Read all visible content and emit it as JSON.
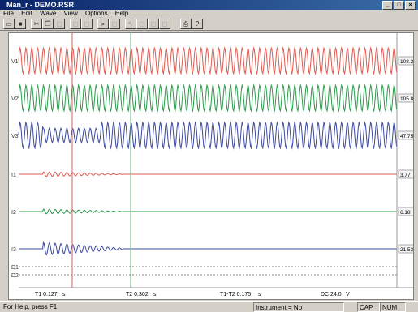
{
  "window": {
    "title": "Man_r - DEMO.RSR",
    "min": "_",
    "max": "□",
    "close": "×"
  },
  "menu": [
    "File",
    "Edit",
    "Wave",
    "View",
    "Options",
    "Help"
  ],
  "toolbar": {
    "icons": [
      "open",
      "save",
      "cut",
      "copy",
      "paste",
      "undo",
      "redo",
      "zoom",
      "cursor",
      "marker",
      "move",
      "select",
      "measure",
      "print",
      "help"
    ]
  },
  "channels": [
    {
      "label": "V1",
      "value": "108.2",
      "unit": "V",
      "color": "#e05a50"
    },
    {
      "label": "V2",
      "value": "105.8",
      "unit": "V",
      "color": "#2a9a4a"
    },
    {
      "label": "V3",
      "value": "47.75",
      "unit": "V",
      "color": "#3a48a0"
    },
    {
      "label": "I1",
      "value": "3.77",
      "unit": "A",
      "color": "#e05a50"
    },
    {
      "label": "I2",
      "value": "6.18",
      "unit": "A",
      "color": "#2a9a4a"
    },
    {
      "label": "I3",
      "value": "21.53",
      "unit": "A",
      "color": "#3a48a0"
    }
  ],
  "digital": [
    "D1",
    "D2"
  ],
  "cursors": {
    "t1": "T1 0.127",
    "t1_unit": "s",
    "t2": "T2 0.302",
    "t2_unit": "s",
    "delta": "T1-T2 0.175",
    "delta_unit": "s",
    "dc": "DC 24.0",
    "dc_unit": "V"
  },
  "status": {
    "help": "For Help, press F1",
    "instrument": "Instrument = No",
    "cap": "CAP",
    "num": "NUM"
  }
}
